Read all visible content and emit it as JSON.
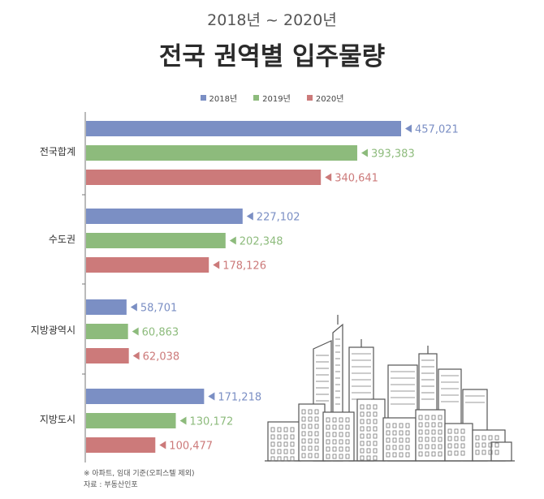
{
  "subtitle": "2018년 ~ 2020년",
  "title": "전국 권역별 입주물량",
  "footnote": {
    "line1": "※ 아파트, 임대 기준(오피스텔 제외)",
    "line2": "자료 : 부동산인포"
  },
  "colors": {
    "2018": "#7b8fc4",
    "2019": "#8dbb7c",
    "2020": "#cc7a7a",
    "axis": "#777777",
    "category": "#333333"
  },
  "chart_data": {
    "type": "bar",
    "orientation": "horizontal",
    "title": "전국 권역별 입주물량",
    "subtitle": "2018년 ~ 2020년",
    "categories": [
      "전국합계",
      "수도권",
      "지방광역시",
      "지방도시"
    ],
    "series": [
      {
        "name": "2018년",
        "values": [
          457021,
          227102,
          58701,
          171218
        ],
        "labels": [
          "457,021",
          "227,102",
          "58,701",
          "171,218"
        ]
      },
      {
        "name": "2019년",
        "values": [
          393383,
          202348,
          60863,
          130172
        ],
        "labels": [
          "393,383",
          "202,348",
          "60,863",
          "130,172"
        ]
      },
      {
        "name": "2020년",
        "values": [
          340641,
          178126,
          62038,
          100477
        ],
        "labels": [
          "340,641",
          "178,126",
          "62,038",
          "100,477"
        ]
      }
    ],
    "legend": "top-center",
    "grid": false
  }
}
